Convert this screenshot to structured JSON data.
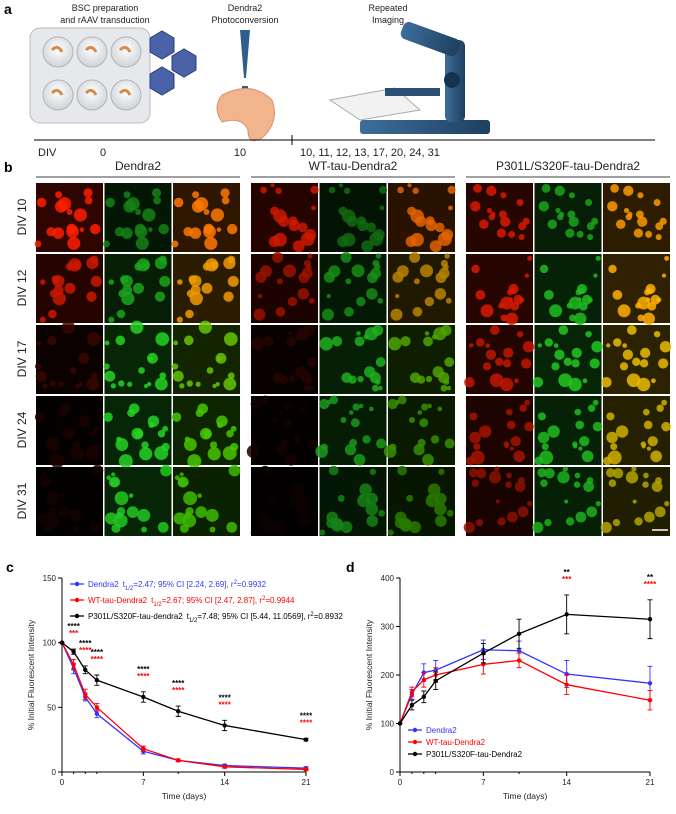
{
  "panel_a": {
    "label": "a",
    "steps": [
      {
        "lines": [
          "BSC preparation",
          "and rAAV transduction"
        ]
      },
      {
        "lines": [
          "Dendra2",
          "Photoconversion"
        ]
      },
      {
        "lines": [
          "Repeated",
          "Imaging"
        ]
      }
    ],
    "timeline": {
      "axis_label": "DIV",
      "marks": [
        "0",
        "10",
        "10, 11, 12, 13, 17, 20, 24, 31"
      ]
    }
  },
  "panel_b": {
    "label": "b",
    "columns": [
      "Dendra2",
      "WT-tau-Dendra2",
      "P301L/S320F-tau-Dendra2"
    ],
    "rows": [
      "DIV 10",
      "DIV 12",
      "DIV 17",
      "DIV 24",
      "DIV 31"
    ]
  },
  "chart_data": [
    {
      "panel_label": "c",
      "type": "line",
      "x_label": "Time (days)",
      "y_label": "% Initial Fluorescent Intensity",
      "x": [
        0,
        1,
        2,
        3,
        7,
        10,
        14,
        21
      ],
      "xlim": [
        0,
        21
      ],
      "xticks": [
        0,
        7,
        14,
        21
      ],
      "ylim": [
        0,
        150
      ],
      "yticks": [
        0,
        50,
        100,
        150
      ],
      "legend": "upper left",
      "series": [
        {
          "name": "Dendra2",
          "color": "#3333ff",
          "values": [
            100,
            80,
            58,
            45,
            16,
            9,
            5,
            3
          ],
          "errors": [
            0,
            4,
            3,
            3,
            2,
            1,
            1,
            1
          ],
          "fit": [
            "t",
            "1/2",
            "=2.47; 95% CI [2.24, 2.69], r",
            "2",
            "=0.9932"
          ]
        },
        {
          "name": "WT-tau-Dendra2",
          "color": "#ff0000",
          "values": [
            100,
            83,
            60,
            50,
            18,
            9,
            4,
            2
          ],
          "errors": [
            0,
            4,
            4,
            3,
            2,
            1,
            1,
            1
          ],
          "fit": [
            "t",
            "1/2",
            "=2.67; 95% CI [2.47, 2.87], r",
            "2",
            "=0.9944"
          ]
        },
        {
          "name": "P301L/S320F-tau-dendra2",
          "color": "#000000",
          "values": [
            100,
            93,
            79,
            71,
            58,
            47,
            36,
            25
          ],
          "errors": [
            0,
            2,
            3,
            4,
            4,
            4,
            4,
            1
          ],
          "fit": [
            "t",
            "1/2",
            "=7.48; 95% CI [5.44, 11.0569], r",
            "2",
            "=0.8932"
          ]
        }
      ],
      "annotations": [
        {
          "x": 1,
          "text": "****",
          "color": "#000000"
        },
        {
          "x": 1,
          "text": "***",
          "color": "#ff0000"
        },
        {
          "x": 2,
          "text": "****",
          "color": "#000000"
        },
        {
          "x": 2,
          "text": "****",
          "color": "#ff0000"
        },
        {
          "x": 3,
          "text": "****",
          "color": "#000000"
        },
        {
          "x": 3,
          "text": "****",
          "color": "#ff0000"
        },
        {
          "x": 7,
          "text": "****",
          "color": "#000000"
        },
        {
          "x": 7,
          "text": "****",
          "color": "#ff0000"
        },
        {
          "x": 10,
          "text": "****",
          "color": "#000000"
        },
        {
          "x": 10,
          "text": "****",
          "color": "#ff0000"
        },
        {
          "x": 14,
          "text": "****",
          "color": "#000000"
        },
        {
          "x": 14,
          "text": "****",
          "color": "#ff0000"
        },
        {
          "x": 21,
          "text": "****",
          "color": "#000000"
        },
        {
          "x": 21,
          "text": "****",
          "color": "#ff0000"
        }
      ]
    },
    {
      "panel_label": "d",
      "type": "line",
      "x_label": "Time (days)",
      "y_label": "% Initial Fluorescent Intensity",
      "x": [
        0,
        1,
        2,
        3,
        7,
        10,
        14,
        21
      ],
      "xlim": [
        0,
        21
      ],
      "xticks": [
        0,
        7,
        14,
        21
      ],
      "ylim": [
        0,
        400
      ],
      "yticks": [
        0,
        100,
        200,
        300,
        400
      ],
      "legend": "lower left",
      "series": [
        {
          "name": "Dendra2",
          "color": "#3333ff",
          "values": [
            100,
            160,
            205,
            210,
            252,
            250,
            202,
            183
          ],
          "errors": [
            0,
            10,
            18,
            20,
            20,
            20,
            28,
            35
          ]
        },
        {
          "name": "WT-tau-Dendra2",
          "color": "#ff0000",
          "values": [
            100,
            165,
            190,
            200,
            222,
            230,
            180,
            148
          ],
          "errors": [
            0,
            10,
            15,
            15,
            20,
            15,
            20,
            20
          ]
        },
        {
          "name": "P301L/S320F-tau-Dendra2",
          "color": "#000000",
          "values": [
            100,
            138,
            155,
            188,
            245,
            285,
            325,
            315
          ],
          "errors": [
            0,
            10,
            12,
            18,
            20,
            30,
            40,
            40
          ]
        }
      ],
      "annotations": [
        {
          "x": 14,
          "text": "**",
          "color": "#000000"
        },
        {
          "x": 14,
          "text": "***",
          "color": "#ff0000"
        },
        {
          "x": 21,
          "text": "**",
          "color": "#000000"
        },
        {
          "x": 21,
          "text": "****",
          "color": "#ff0000"
        }
      ]
    }
  ]
}
